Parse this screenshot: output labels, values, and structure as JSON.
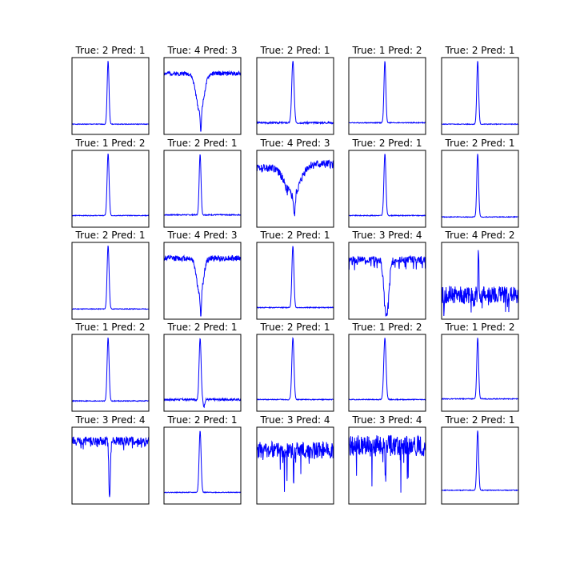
{
  "figure": {
    "background": "#ffffff",
    "line_color": "#0000ff",
    "axis_color": "#000000"
  },
  "chart_data": [
    {
      "type": "line",
      "title": "True: 2 Pred: 1",
      "shape": "peak",
      "noise": 0.005,
      "width": 0.012,
      "baseline": 0.1,
      "seed": 1
    },
    {
      "type": "line",
      "title": "True: 4 Pred: 3",
      "shape": "dip_double",
      "noise": 0.03,
      "width": 0.05,
      "baseline": 0.82,
      "seed": 2
    },
    {
      "type": "line",
      "title": "True: 2 Pred: 1",
      "shape": "peak",
      "noise": 0.012,
      "width": 0.015,
      "baseline": 0.12,
      "seed": 3
    },
    {
      "type": "line",
      "title": "True: 1 Pred: 2",
      "shape": "peak",
      "noise": 0.006,
      "width": 0.012,
      "baseline": 0.12,
      "seed": 4
    },
    {
      "type": "line",
      "title": "True: 2 Pred: 1",
      "shape": "peak",
      "noise": 0.005,
      "width": 0.012,
      "baseline": 0.1,
      "seed": 5
    },
    {
      "type": "line",
      "title": "True: 1 Pred: 2",
      "shape": "peak",
      "noise": 0.005,
      "width": 0.013,
      "baseline": 0.12,
      "seed": 6
    },
    {
      "type": "line",
      "title": "True: 2 Pred: 1",
      "shape": "peak",
      "noise": 0.008,
      "width": 0.012,
      "baseline": 0.13,
      "seed": 7
    },
    {
      "type": "line",
      "title": "True: 4 Pred: 3",
      "shape": "dip_broad",
      "noise": 0.06,
      "width": 0.09,
      "baseline": 0.85,
      "seed": 8
    },
    {
      "type": "line",
      "title": "True: 2 Pred: 1",
      "shape": "peak",
      "noise": 0.006,
      "width": 0.013,
      "baseline": 0.12,
      "seed": 9
    },
    {
      "type": "line",
      "title": "True: 2 Pred: 1",
      "shape": "peak",
      "noise": 0.005,
      "width": 0.012,
      "baseline": 0.1,
      "seed": 10
    },
    {
      "type": "line",
      "title": "True: 2 Pred: 1",
      "shape": "peak",
      "noise": 0.005,
      "width": 0.013,
      "baseline": 0.1,
      "seed": 11
    },
    {
      "type": "line",
      "title": "True: 4 Pred: 3",
      "shape": "dip_double",
      "noise": 0.04,
      "width": 0.04,
      "baseline": 0.82,
      "seed": 12
    },
    {
      "type": "line",
      "title": "True: 2 Pred: 1",
      "shape": "peak",
      "noise": 0.006,
      "width": 0.013,
      "baseline": 0.12,
      "seed": 13
    },
    {
      "type": "line",
      "title": "True: 3 Pred: 4",
      "shape": "dip_sharp",
      "noise": 0.05,
      "width": 0.03,
      "baseline": 0.8,
      "seed": 14
    },
    {
      "type": "line",
      "title": "True: 4 Pred: 2",
      "shape": "noisy_peak",
      "noise": 0.12,
      "width": 0.01,
      "baseline": 0.3,
      "seed": 15
    },
    {
      "type": "line",
      "title": "True: 1 Pred: 2",
      "shape": "peak",
      "noise": 0.006,
      "width": 0.013,
      "baseline": 0.1,
      "seed": 16
    },
    {
      "type": "line",
      "title": "True: 2 Pred: 1",
      "shape": "peak_dip",
      "noise": 0.015,
      "width": 0.013,
      "baseline": 0.12,
      "seed": 17
    },
    {
      "type": "line",
      "title": "True: 2 Pred: 1",
      "shape": "peak",
      "noise": 0.006,
      "width": 0.014,
      "baseline": 0.12,
      "seed": 18
    },
    {
      "type": "line",
      "title": "True: 1 Pred: 2",
      "shape": "peak",
      "noise": 0.006,
      "width": 0.015,
      "baseline": 0.12,
      "seed": 19
    },
    {
      "type": "line",
      "title": "True: 1 Pred: 2",
      "shape": "peak",
      "noise": 0.006,
      "width": 0.012,
      "baseline": 0.13,
      "seed": 20
    },
    {
      "type": "line",
      "title": "True: 3 Pred: 4",
      "shape": "dip_sharp",
      "noise": 0.06,
      "width": 0.01,
      "baseline": 0.85,
      "seed": 21
    },
    {
      "type": "line",
      "title": "True: 2 Pred: 1",
      "shape": "peak",
      "noise": 0.005,
      "width": 0.013,
      "baseline": 0.12,
      "seed": 22
    },
    {
      "type": "line",
      "title": "True: 3 Pred: 4",
      "shape": "spiky_dips",
      "noise": 0.12,
      "width": 0.01,
      "baseline": 0.72,
      "seed": 23
    },
    {
      "type": "line",
      "title": "True: 3 Pred: 4",
      "shape": "spiky_dips",
      "noise": 0.15,
      "width": 0.01,
      "baseline": 0.78,
      "seed": 24
    },
    {
      "type": "line",
      "title": "True: 2 Pred: 1",
      "shape": "peak",
      "noise": 0.005,
      "width": 0.012,
      "baseline": 0.15,
      "seed": 25
    }
  ]
}
